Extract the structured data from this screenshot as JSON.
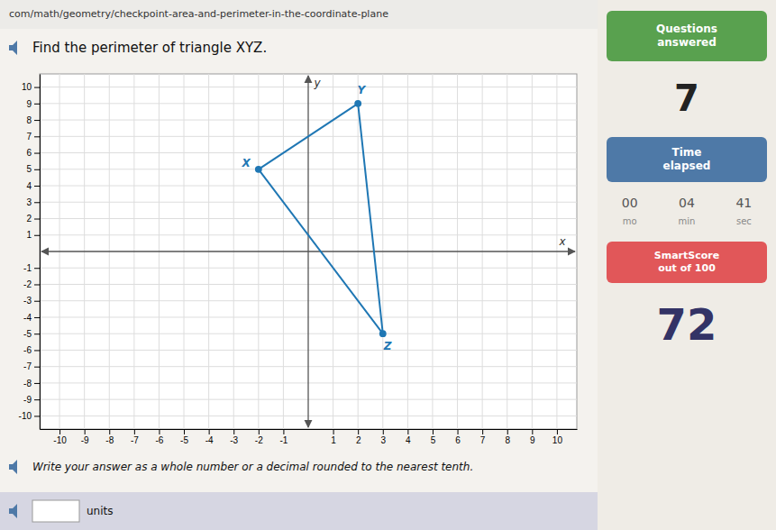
{
  "chart_data": {
    "type": "polygon",
    "title": "Find the perimeter of triangle XYZ.",
    "x_label": "x",
    "y_label": "y",
    "x": [
      -2,
      2,
      3
    ],
    "values": [
      5,
      9,
      -5
    ],
    "point_labels": [
      "X",
      "Y",
      "Z"
    ],
    "marker": "circle",
    "line_style": "solid",
    "xlim": [
      -10.8,
      10.8
    ],
    "ylim": [
      -10.8,
      10.8
    ],
    "xticks": [
      -10,
      -9,
      -8,
      -7,
      -6,
      -5,
      -4,
      -3,
      -2,
      -1,
      1,
      2,
      3,
      4,
      5,
      6,
      7,
      8,
      9,
      10
    ],
    "yticks": [
      -10,
      -9,
      -8,
      -7,
      -6,
      -5,
      -4,
      -3,
      -2,
      -1,
      1,
      2,
      3,
      4,
      5,
      6,
      7,
      8,
      9,
      10
    ],
    "grid": true,
    "annotations": [
      "com/math/geometry/checkpoint-area-and-perimeter-in-the-coordinate-plane",
      "Write your answer as a whole number or a decimal rounded to the nearest tenth.",
      "units",
      "Questions\nanswered",
      "7",
      "Time\nelapsed",
      "00",
      "04",
      "41",
      "mo",
      "min",
      "sec",
      "SmartScore\nout of 100",
      "72"
    ]
  }
}
